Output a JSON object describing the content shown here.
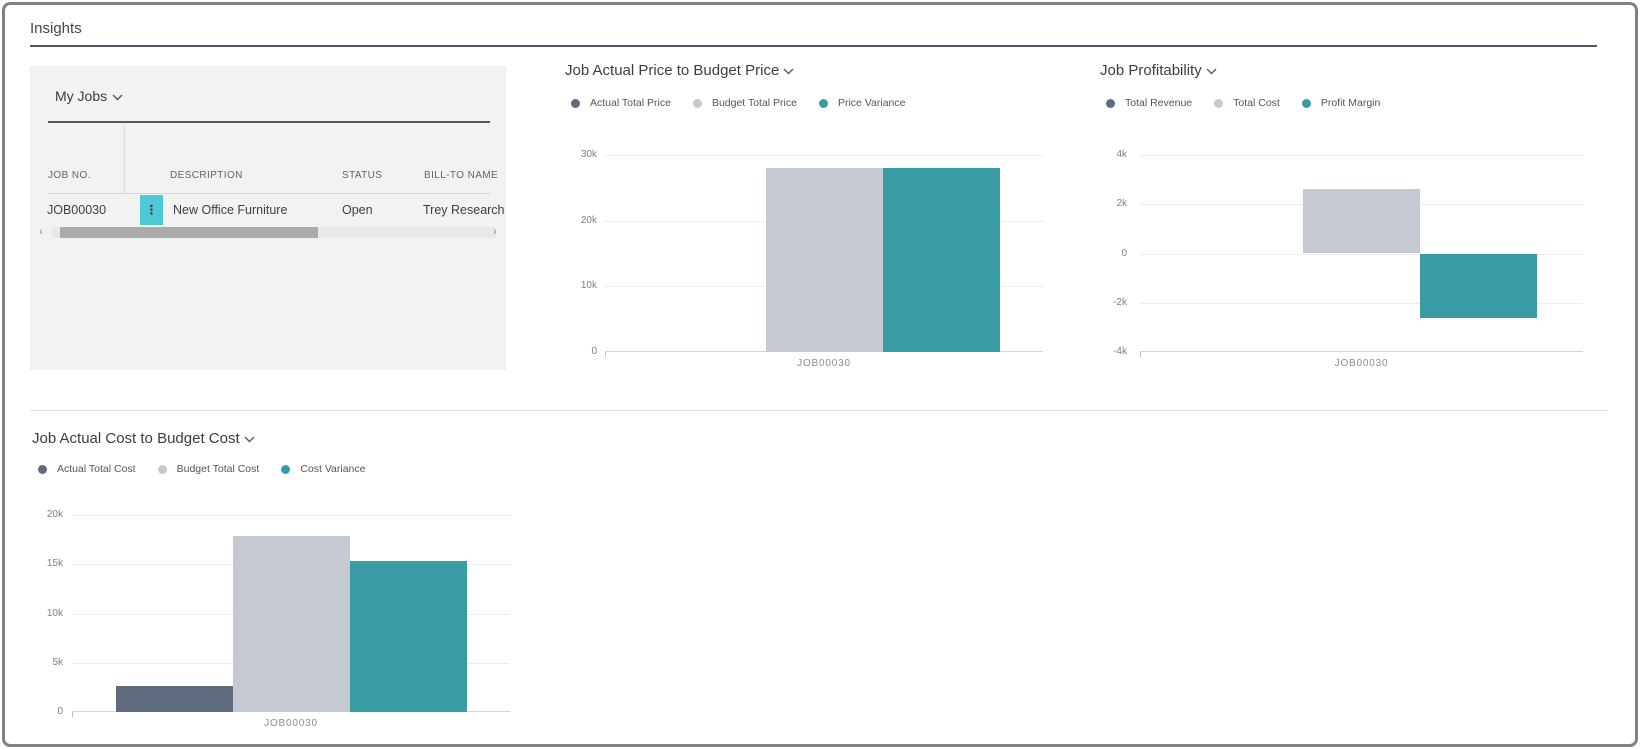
{
  "page": {
    "title": "Insights"
  },
  "jobs_panel": {
    "title": "My Jobs",
    "columns": [
      "JOB NO.",
      "DESCRIPTION",
      "STATUS",
      "BILL-TO NAME"
    ],
    "rows": [
      {
        "job_no": "JOB00030",
        "description": "New Office Furniture",
        "status": "Open",
        "bill_to_name": "Trey Research"
      }
    ]
  },
  "icons": {
    "scroll_left": "‹",
    "scroll_right": "›",
    "ellipsis_vertical": "⋮"
  },
  "colors": {
    "accent_teal": "#399CA4",
    "bar_light_gray": "#C5C9D2",
    "bar_dark_slate": "#5D6B7C",
    "job_link": "#38A3B2",
    "row_action_button": "#4FC9D9",
    "heading_rule": "#4C5966"
  },
  "chart_data": [
    {
      "type": "bar",
      "title": "Job Actual Price to Budget Price",
      "categories": [
        "JOB00030"
      ],
      "series": [
        {
          "name": "Actual Total Price",
          "color": "#5D6B7C",
          "values": [
            0
          ]
        },
        {
          "name": "Budget Total Price",
          "color": "#C5C9D2",
          "values": [
            28000
          ]
        },
        {
          "name": "Price Variance",
          "color": "#399CA4",
          "values": [
            28000
          ]
        }
      ],
      "ylim": [
        0,
        30000
      ],
      "yticks": [
        {
          "label": "30k",
          "value": 30000
        },
        {
          "label": "20k",
          "value": 20000
        },
        {
          "label": "10k",
          "value": 10000
        },
        {
          "label": "0",
          "value": 0
        }
      ],
      "legend_position": "top",
      "grid": true,
      "xlabel": "",
      "ylabel": ""
    },
    {
      "type": "bar",
      "title": "Job Profitability",
      "categories": [
        "JOB00030"
      ],
      "series": [
        {
          "name": "Total Revenue",
          "color": "#5D6B7C",
          "values": [
            0
          ]
        },
        {
          "name": "Total Cost",
          "color": "#C5C9D2",
          "values": [
            2600
          ]
        },
        {
          "name": "Profit Margin",
          "color": "#399CA4",
          "values": [
            -2600
          ]
        }
      ],
      "ylim": [
        -4000,
        4000
      ],
      "yticks": [
        {
          "label": "4k",
          "value": 4000
        },
        {
          "label": "2k",
          "value": 2000
        },
        {
          "label": "0",
          "value": 0
        },
        {
          "label": "-2k",
          "value": -2000
        },
        {
          "label": "-4k",
          "value": -4000
        }
      ],
      "legend_position": "top",
      "grid": true,
      "xlabel": "",
      "ylabel": ""
    },
    {
      "type": "bar",
      "title": "Job Actual Cost to Budget Cost",
      "categories": [
        "JOB00030"
      ],
      "series": [
        {
          "name": "Actual Total Cost",
          "color": "#5D6B7C",
          "values": [
            2600
          ]
        },
        {
          "name": "Budget Total Cost",
          "color": "#C5C9D2",
          "values": [
            17900
          ]
        },
        {
          "name": "Cost Variance",
          "color": "#399CA4",
          "values": [
            15300
          ]
        }
      ],
      "ylim": [
        0,
        20000
      ],
      "yticks": [
        {
          "label": "20k",
          "value": 20000
        },
        {
          "label": "15k",
          "value": 15000
        },
        {
          "label": "10k",
          "value": 10000
        },
        {
          "label": "5k",
          "value": 5000
        },
        {
          "label": "0",
          "value": 0
        }
      ],
      "legend_position": "top",
      "grid": true,
      "xlabel": "",
      "ylabel": ""
    }
  ]
}
